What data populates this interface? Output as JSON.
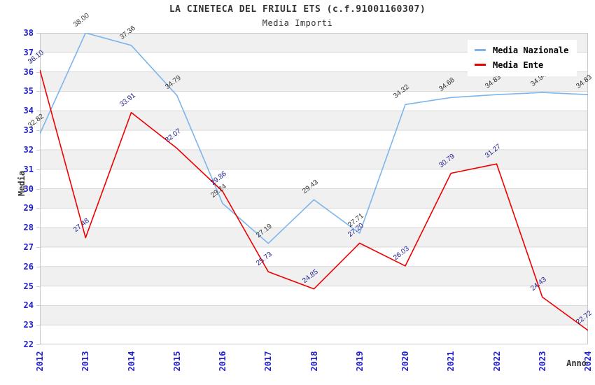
{
  "header": {
    "title": "LA CINETECA DEL FRIULI ETS (c.f.91001160307)",
    "subtitle": "Media Importi"
  },
  "axes": {
    "x_title": "Anno",
    "y_title": "Media",
    "tick_color": "#2121cc"
  },
  "legend": {
    "position": "top-right",
    "items": [
      {
        "label": "Media Nazionale",
        "color": "#7cb5ec"
      },
      {
        "label": "Media Ente",
        "color": "#ee0000"
      }
    ]
  },
  "chart_data": {
    "type": "line",
    "title": "LA CINETECA DEL FRIULI ETS (c.f.91001160307)",
    "subtitle": "Media Importi",
    "xlabel": "Anno",
    "ylabel": "Media",
    "categories": [
      "2012",
      "2013",
      "2014",
      "2015",
      "2016",
      "2017",
      "2018",
      "2019",
      "2020",
      "2021",
      "2022",
      "2023",
      "2024"
    ],
    "series": [
      {
        "name": "Media Nazionale",
        "color": "#7cb5ec",
        "label_color": "#333333",
        "values": [
          32.82,
          38.0,
          37.36,
          34.79,
          29.24,
          27.19,
          29.43,
          27.71,
          34.32,
          34.68,
          34.83,
          34.94,
          34.83
        ]
      },
      {
        "name": "Media Ente",
        "color": "#ee0000",
        "label_color": "#19198c",
        "values": [
          36.1,
          27.48,
          33.91,
          32.07,
          29.86,
          25.73,
          24.85,
          27.2,
          26.03,
          30.79,
          31.27,
          24.43,
          22.72
        ]
      }
    ],
    "ylim": [
      22,
      38
    ],
    "ytick_step": 1,
    "grid": true,
    "band_color": "#f0f0f0",
    "gridline_color": "#d9d9d9",
    "border_color": "#c9c9c9",
    "legend_position": "top-right"
  }
}
